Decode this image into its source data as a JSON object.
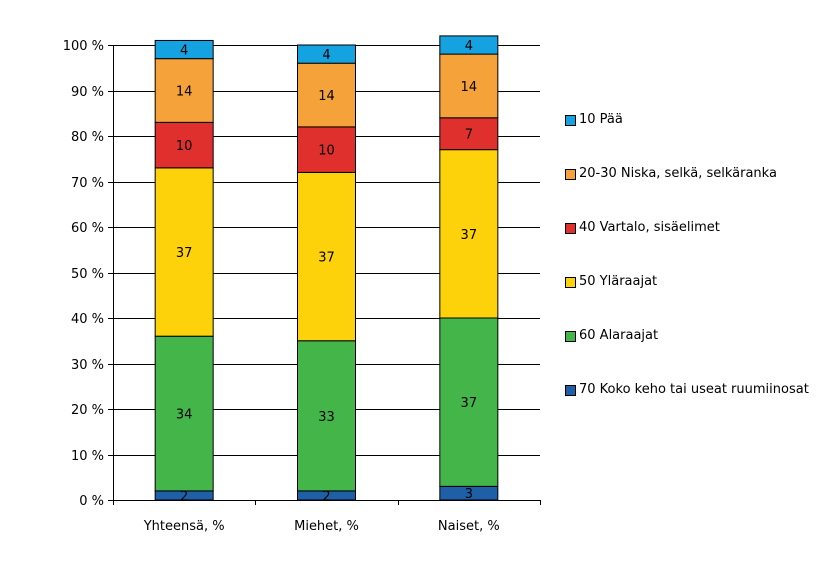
{
  "chart_data": {
    "type": "bar",
    "stacked": true,
    "categories": [
      "Yhteensä, %",
      "Miehet, %",
      "Naiset, %"
    ],
    "series": [
      {
        "name": "70 Koko keho tai useat ruumiinosat",
        "color": "#1f5fa8",
        "values": [
          2,
          2,
          3
        ],
        "labels": [
          "2",
          "2",
          "3"
        ]
      },
      {
        "name": "60 Alaraajat",
        "color": "#44b649",
        "values": [
          34,
          33,
          37
        ],
        "labels": [
          "34",
          "33",
          "37"
        ]
      },
      {
        "name": "50 Yläraajat",
        "color": "#fdd20a",
        "values": [
          37,
          37,
          37
        ],
        "labels": [
          "37",
          "37",
          "37"
        ]
      },
      {
        "name": "40 Vartalo, sisäelimet",
        "color": "#e0302e",
        "values": [
          10,
          10,
          7
        ],
        "labels": [
          "10",
          "10",
          "7"
        ]
      },
      {
        "name": "20-30 Niska, selkä, selkäranka",
        "color": "#f6a23a",
        "values": [
          14,
          14,
          14
        ],
        "labels": [
          "14",
          "14",
          "14"
        ]
      },
      {
        "name": "10 Pää",
        "color": "#14a2e0",
        "values": [
          4,
          4,
          4
        ],
        "labels": [
          "4",
          "4",
          "4"
        ]
      }
    ],
    "yticks": [
      "0 %",
      "10 %",
      "20 %",
      "30 %",
      "40 %",
      "50 %",
      "60 %",
      "70 %",
      "80 %",
      "90 %",
      "100 %"
    ],
    "ylim": [
      0,
      100
    ],
    "grid": true,
    "legend_position": "right",
    "legend_order": [
      "10 Pää",
      "20-30 Niska, selkä, selkäranka",
      "40 Vartalo, sisäelimet",
      "50 Yläraajat",
      "60 Alaraajat",
      "70 Koko keho tai useat ruumiinosat"
    ]
  }
}
